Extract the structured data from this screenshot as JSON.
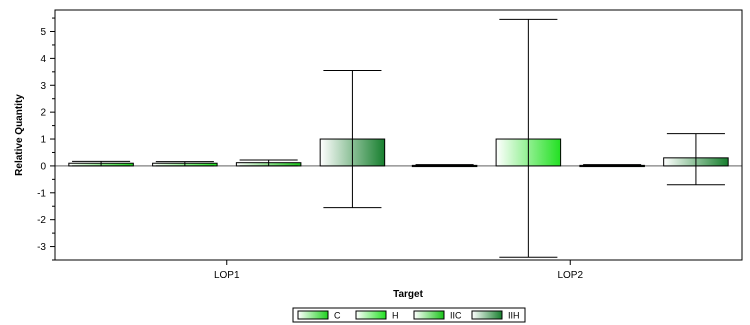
{
  "chart_data": {
    "type": "bar",
    "xlabel": "Target",
    "ylabel": "Relative Quantity",
    "categories": [
      "LOP1",
      "LOP2"
    ],
    "ylim": [
      -3.5,
      5.8
    ],
    "yticks": [
      -3,
      -2,
      -1,
      0,
      1,
      2,
      3,
      4,
      5
    ],
    "grid": false,
    "legend_position": "bottom-center",
    "series": [
      {
        "name": "C",
        "values": [
          0.1,
          0.02
        ],
        "error_low": [
          0.0,
          0.0
        ],
        "error_high": [
          0.17,
          0.05
        ],
        "color": "#1fd11f"
      },
      {
        "name": "H",
        "values": [
          0.1,
          1.0
        ],
        "error_low": [
          0.0,
          -3.4
        ],
        "error_high": [
          0.16,
          5.45
        ],
        "color": "#22e022"
      },
      {
        "name": "IIC",
        "values": [
          0.12,
          0.02
        ],
        "error_low": [
          0.0,
          0.0
        ],
        "error_high": [
          0.22,
          0.05
        ],
        "color": "#19c419"
      },
      {
        "name": "IIH",
        "values": [
          1.0,
          0.3
        ],
        "error_low": [
          -1.55,
          -0.7
        ],
        "error_high": [
          3.55,
          1.2
        ],
        "color": "#177f2e"
      }
    ]
  }
}
